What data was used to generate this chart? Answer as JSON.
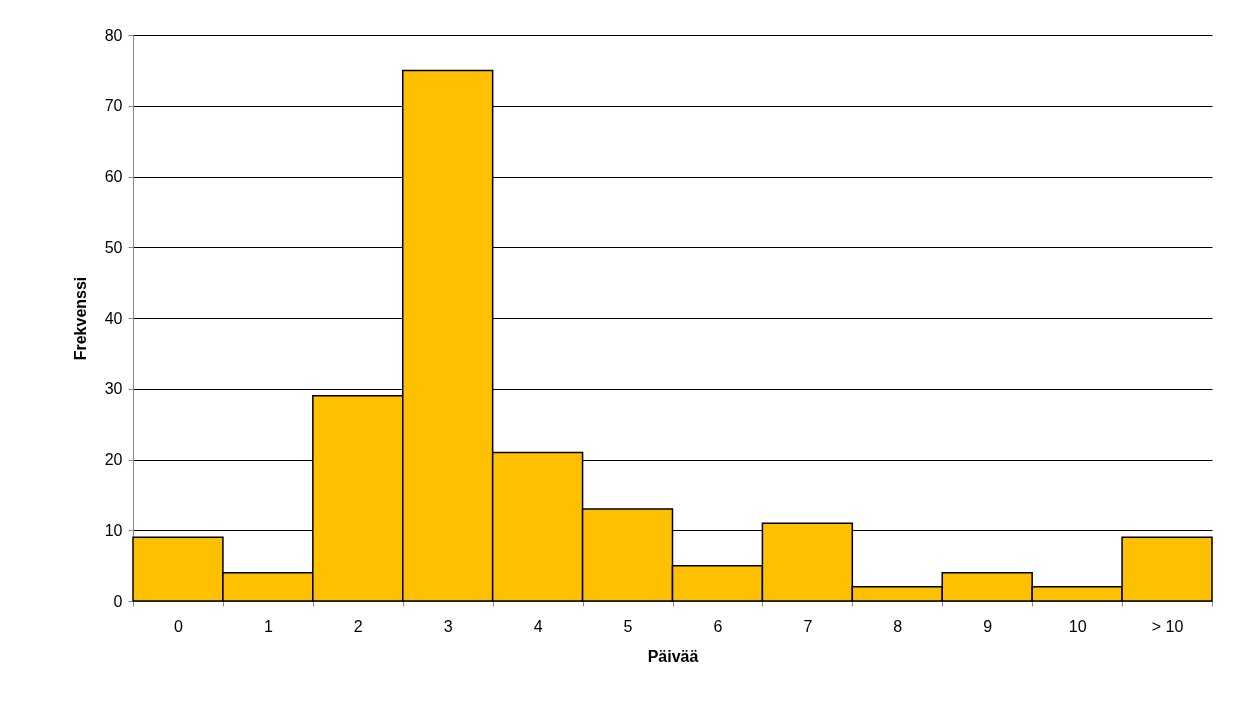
{
  "chart_data": {
    "type": "bar",
    "categories": [
      "0",
      "1",
      "2",
      "3",
      "4",
      "5",
      "6",
      "7",
      "8",
      "9",
      "10",
      "> 10"
    ],
    "values": [
      9,
      4,
      29,
      75,
      21,
      13,
      5,
      11,
      2,
      4,
      2,
      9
    ],
    "color": "#ffc000",
    "xlabel": "Päivää",
    "ylabel": "Frekvenssi",
    "ylim": [
      0,
      80
    ],
    "yticks": [
      0,
      10,
      20,
      30,
      40,
      50,
      60,
      70,
      80
    ],
    "grid": "y"
  }
}
